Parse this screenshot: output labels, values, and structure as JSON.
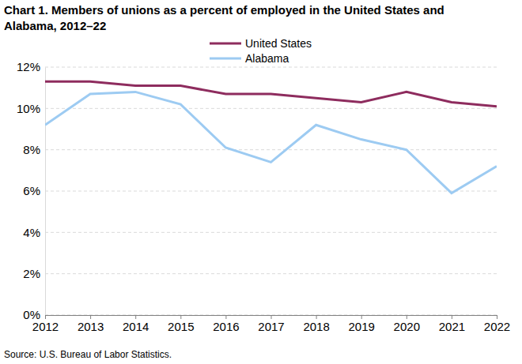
{
  "chart_data": {
    "type": "line",
    "title": "Chart 1. Members of unions as a percent of employed in the United States and Alabama, 2012–22",
    "source": "Source: U.S. Bureau of Labor Statistics.",
    "x": [
      2012,
      2013,
      2014,
      2015,
      2016,
      2017,
      2018,
      2019,
      2020,
      2021,
      2022
    ],
    "series": [
      {
        "name": "United States",
        "color": "#8e2c5e",
        "values": [
          11.3,
          11.3,
          11.1,
          11.1,
          10.7,
          10.7,
          10.5,
          10.3,
          10.8,
          10.3,
          10.1
        ]
      },
      {
        "name": "Alabama",
        "color": "#9dcbf2",
        "values": [
          9.2,
          10.7,
          10.8,
          10.2,
          8.1,
          7.4,
          9.2,
          8.5,
          8.0,
          5.9,
          7.2
        ]
      }
    ],
    "xlim": [
      2012,
      2022
    ],
    "xticks": [
      2012,
      2013,
      2014,
      2015,
      2016,
      2017,
      2018,
      2019,
      2020,
      2021,
      2022
    ],
    "ylim": [
      0,
      12
    ],
    "yticks": [
      {
        "value": 0,
        "label": "0%"
      },
      {
        "value": 2,
        "label": "2%"
      },
      {
        "value": 4,
        "label": "4%"
      },
      {
        "value": 6,
        "label": "6%"
      },
      {
        "value": 8,
        "label": "8%"
      },
      {
        "value": 10,
        "label": "10%"
      },
      {
        "value": 12,
        "label": "12%"
      }
    ],
    "grid": true,
    "legend": "top"
  }
}
